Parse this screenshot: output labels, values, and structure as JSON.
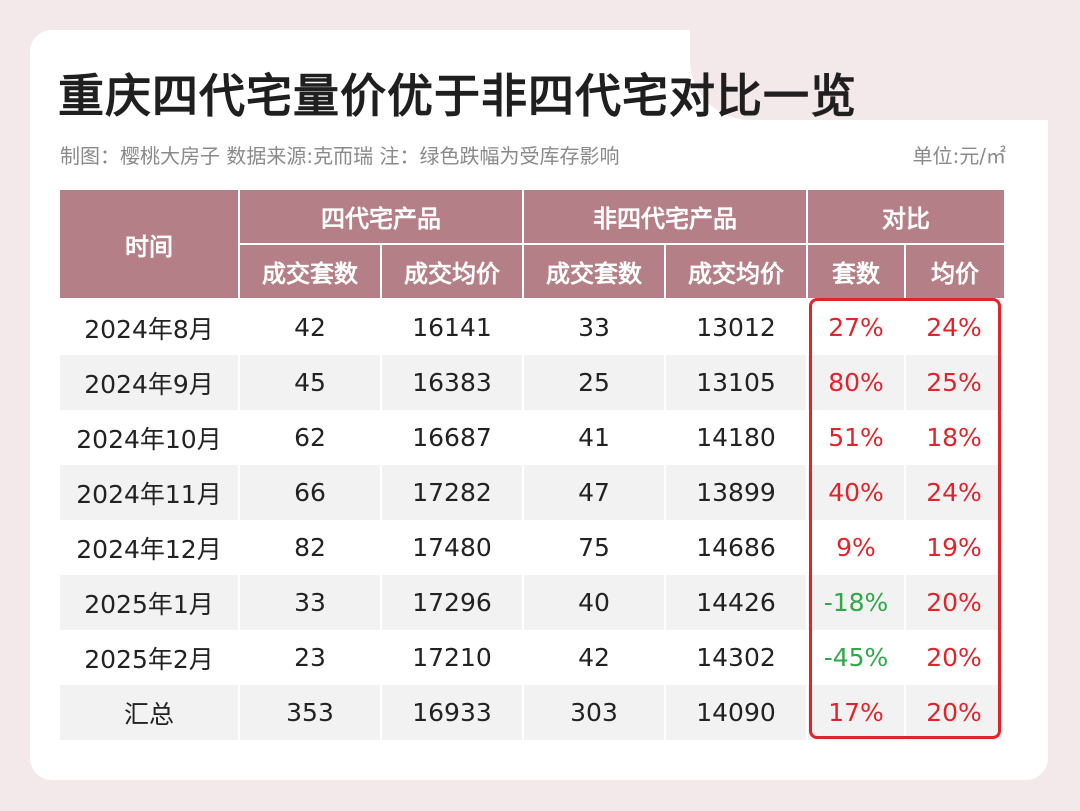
{
  "title": "重庆四代宅量价优于非四代宅对比一览",
  "subtitle": "制图：樱桃大房子   数据来源:克而瑞   注：绿色跌幅为受库存影响",
  "unit": "单位:元/㎡",
  "header": {
    "time": "时间",
    "group_a": "四代宅产品",
    "group_b": "非四代宅产品",
    "group_c": "对比",
    "a_count": "成交套数",
    "a_price": "成交均价",
    "b_count": "成交套数",
    "b_price": "成交均价",
    "c_count": "套数",
    "c_price": "均价"
  },
  "rows": [
    {
      "time": "2024年8月",
      "a_count": "42",
      "a_price": "16141",
      "b_count": "33",
      "b_price": "13012",
      "c_count": "27%",
      "c_price": "24%"
    },
    {
      "time": "2024年9月",
      "a_count": "45",
      "a_price": "16383",
      "b_count": "25",
      "b_price": "13105",
      "c_count": "80%",
      "c_price": "25%"
    },
    {
      "time": "2024年10月",
      "a_count": "62",
      "a_price": "16687",
      "b_count": "41",
      "b_price": "14180",
      "c_count": "51%",
      "c_price": "18%"
    },
    {
      "time": "2024年11月",
      "a_count": "66",
      "a_price": "17282",
      "b_count": "47",
      "b_price": "13899",
      "c_count": "40%",
      "c_price": "24%"
    },
    {
      "time": "2024年12月",
      "a_count": "82",
      "a_price": "17480",
      "b_count": "75",
      "b_price": "14686",
      "c_count": "9%",
      "c_price": "19%"
    },
    {
      "time": "2025年1月",
      "a_count": "33",
      "a_price": "17296",
      "b_count": "40",
      "b_price": "14426",
      "c_count": "-18%",
      "c_price": "20%"
    },
    {
      "time": "2025年2月",
      "a_count": "23",
      "a_price": "17210",
      "b_count": "42",
      "b_price": "14302",
      "c_count": "-45%",
      "c_price": "20%"
    },
    {
      "time": "汇总",
      "a_count": "353",
      "a_price": "16933",
      "b_count": "303",
      "b_price": "14090",
      "c_count": "17%",
      "c_price": "20%"
    }
  ],
  "colors": {
    "header_bg": "#b47f86",
    "positive": "#e0242c",
    "negative": "#2fa84a",
    "highlight_border": "#e0242c"
  }
}
